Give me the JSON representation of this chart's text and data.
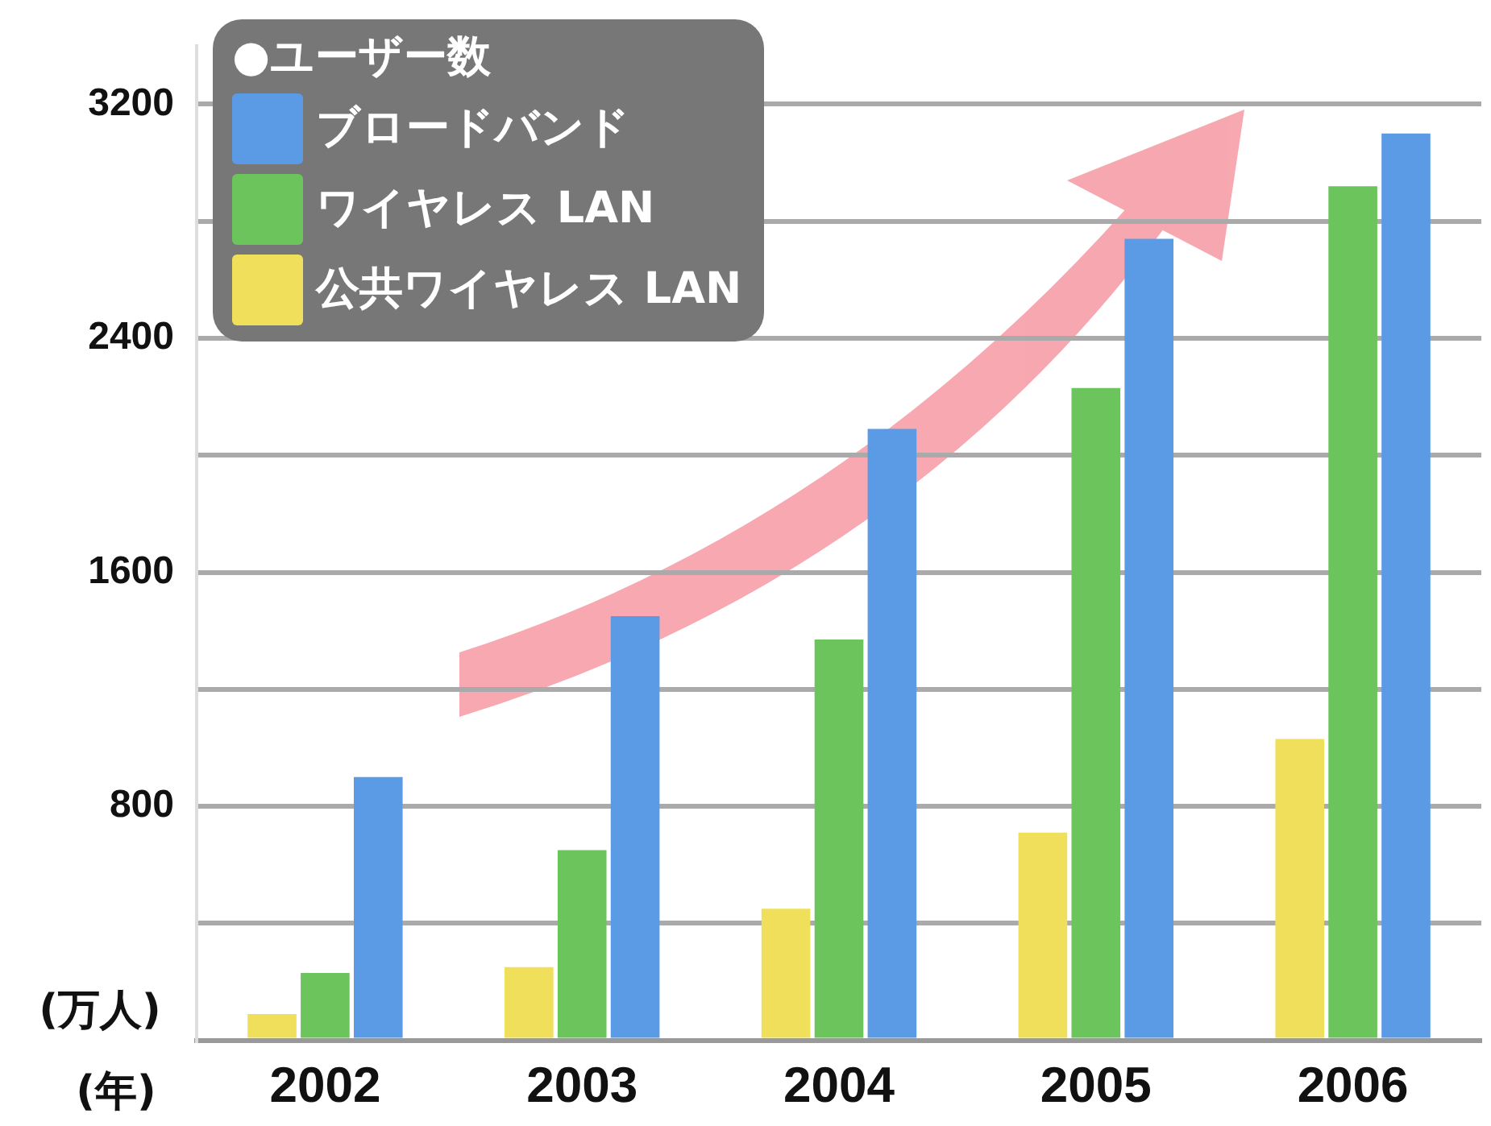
{
  "chart_data": {
    "type": "bar",
    "xlabel": "(年)",
    "ylabel": "(万人)",
    "legend_title": "●ユーザー数",
    "categories": [
      "2002",
      "2003",
      "2004",
      "2005",
      "2006"
    ],
    "series": [
      {
        "name": "公共ワイヤレス LAN",
        "color": "#f0df5a",
        "values": [
          90,
          250,
          450,
          710,
          1030
        ]
      },
      {
        "name": "ワイヤレス LAN",
        "color": "#6cc45c",
        "values": [
          230,
          650,
          1370,
          2230,
          2920
        ]
      },
      {
        "name": "ブロードバンド",
        "color": "#5b9be6",
        "values": [
          900,
          1450,
          2090,
          2740,
          3100
        ]
      }
    ],
    "ylim": [
      0,
      3400
    ],
    "yticks": [
      {
        "value": 0,
        "label": null
      },
      {
        "value": 400,
        "label": null
      },
      800,
      {
        "value": 1200,
        "label": null
      },
      1600,
      {
        "value": 2000,
        "label": null
      },
      2400,
      {
        "value": 2800,
        "label": null
      },
      3200
    ],
    "grid": "y",
    "legend": "top left"
  }
}
